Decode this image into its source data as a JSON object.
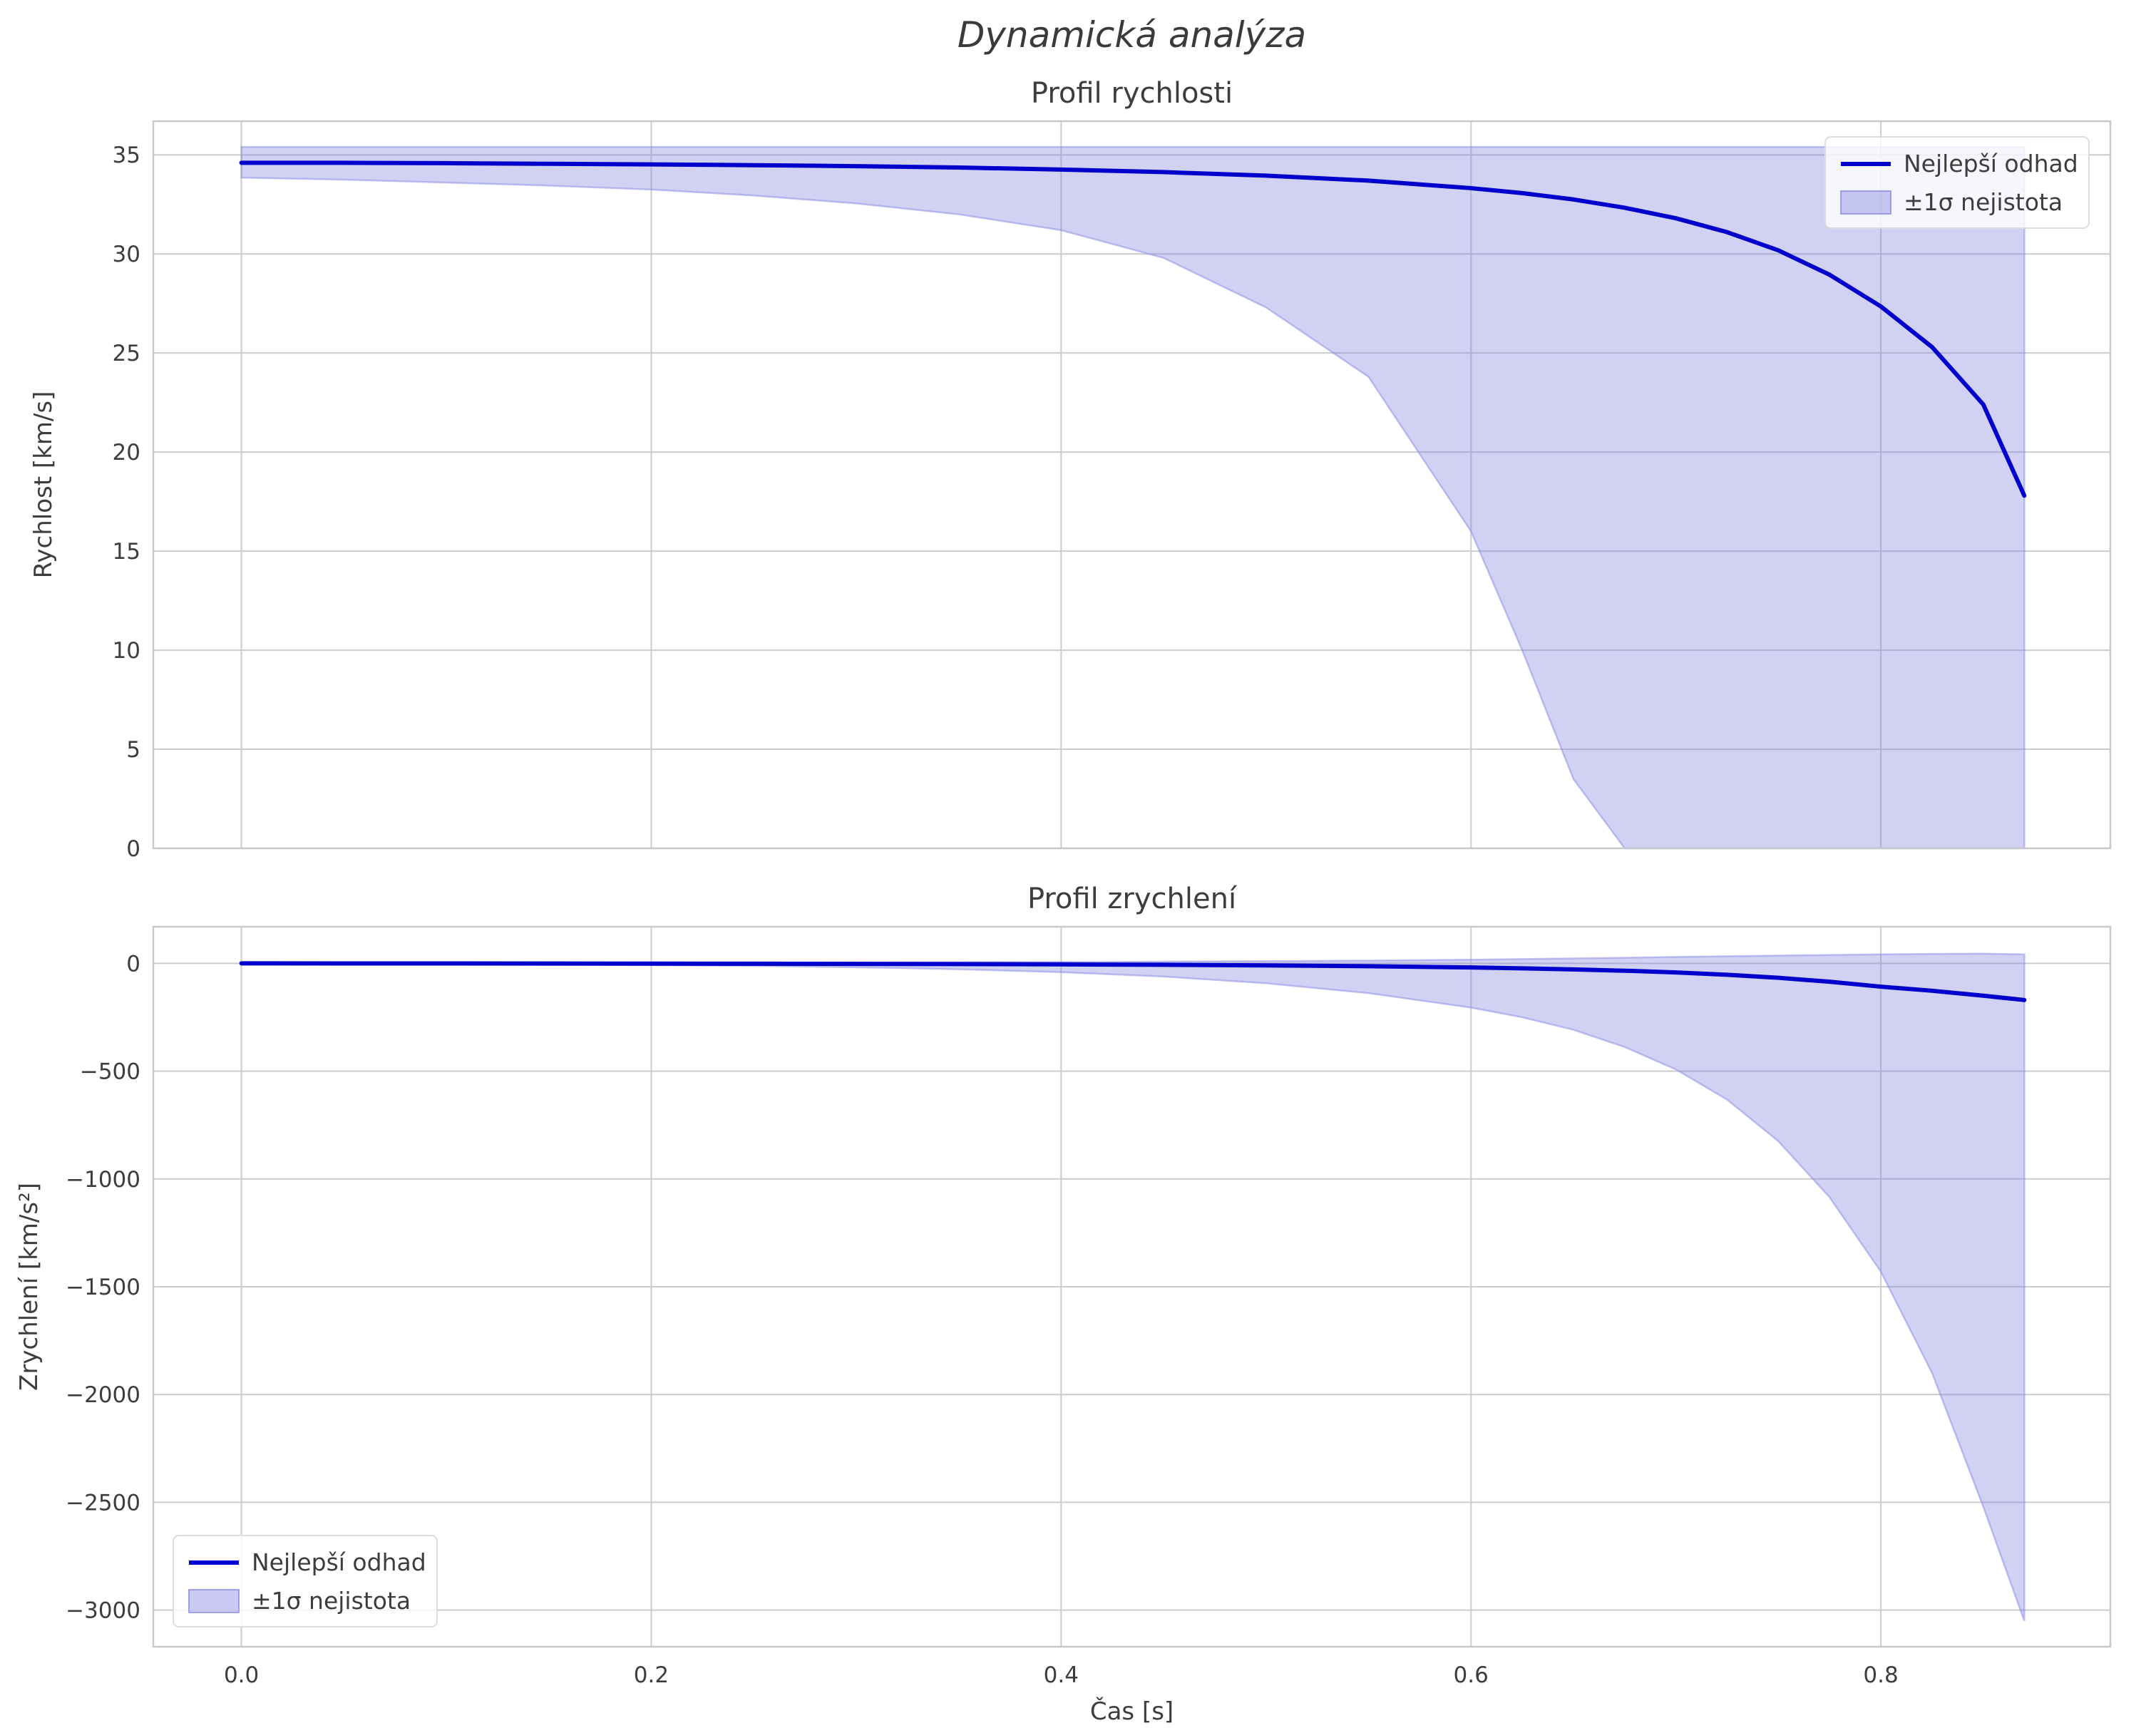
{
  "title": "Dynamická analýza",
  "colors": {
    "line": "#0000cc",
    "band_fill": "#7b7bdf",
    "band_edge": "#8f8fe6",
    "grid": "#cccccc",
    "frame": "#c9c9c9",
    "text": "#3d3d3d"
  },
  "chart_data": [
    {
      "name": "velocity-chart",
      "type": "line",
      "title": "Profil rychlosti",
      "xlabel": "",
      "ylabel": "Rychlost [km/s]",
      "xlim": [
        -0.043,
        0.912
      ],
      "ylim": [
        0,
        36.7
      ],
      "xticks": [
        0,
        0.2,
        0.4,
        0.6,
        0.8
      ],
      "xtick_labels": [
        "0.0",
        "0.2",
        "0.4",
        "0.6",
        "0.8"
      ],
      "show_xticklabels": false,
      "yticks": [
        0,
        5,
        10,
        15,
        20,
        25,
        30,
        35
      ],
      "ytick_labels": [
        "0",
        "5",
        "10",
        "15",
        "20",
        "25",
        "30",
        "35"
      ],
      "grid": true,
      "legend_pos": "top-right",
      "legend": [
        {
          "label": "Nejlepší odhad",
          "type": "line"
        },
        {
          "label": "±1σ nejistota",
          "type": "band"
        }
      ],
      "series": {
        "x": [
          0,
          0.05,
          0.1,
          0.15,
          0.2,
          0.25,
          0.3,
          0.35,
          0.4,
          0.45,
          0.5,
          0.55,
          0.6,
          0.625,
          0.65,
          0.675,
          0.7,
          0.725,
          0.75,
          0.775,
          0.8,
          0.825,
          0.85,
          0.87
        ],
        "best": [
          34.6,
          34.6,
          34.58,
          34.55,
          34.52,
          34.48,
          34.43,
          34.36,
          34.26,
          34.13,
          33.95,
          33.7,
          33.32,
          33.07,
          32.75,
          32.33,
          31.8,
          31.1,
          30.18,
          28.95,
          27.35,
          25.3,
          22.4,
          17.8
        ],
        "upper": [
          35.4,
          35.4,
          35.4,
          35.4,
          35.4,
          35.4,
          35.4,
          35.4,
          35.4,
          35.4,
          35.4,
          35.4,
          35.4,
          35.4,
          35.4,
          35.4,
          35.4,
          35.4,
          35.4,
          35.4,
          35.4,
          35.4,
          35.4,
          35.4
        ],
        "lower": [
          33.85,
          33.75,
          33.6,
          33.45,
          33.25,
          32.95,
          32.55,
          32.0,
          31.2,
          29.8,
          27.3,
          23.8,
          16.0,
          10.0,
          3.5,
          0,
          0,
          0,
          0,
          0,
          0,
          0,
          0,
          0
        ]
      }
    },
    {
      "name": "acceleration-chart",
      "type": "line",
      "title": "Profil zrychlení",
      "xlabel": "Čas [s]",
      "ylabel": "Zrychlení [km/s²]",
      "xlim": [
        -0.043,
        0.912
      ],
      "ylim": [
        -3170,
        170
      ],
      "xticks": [
        0,
        0.2,
        0.4,
        0.6,
        0.8
      ],
      "xtick_labels": [
        "0.0",
        "0.2",
        "0.4",
        "0.6",
        "0.8"
      ],
      "show_xticklabels": true,
      "yticks": [
        0,
        -500,
        -1000,
        -1500,
        -2000,
        -2500,
        -3000
      ],
      "ytick_labels": [
        "0",
        "−500",
        "−1000",
        "−1500",
        "−2000",
        "−2500",
        "−3000"
      ],
      "grid": true,
      "legend_pos": "bottom-left",
      "legend": [
        {
          "label": "Nejlepší odhad",
          "type": "line"
        },
        {
          "label": "±1σ nejistota",
          "type": "band"
        }
      ],
      "series": {
        "x": [
          0,
          0.05,
          0.1,
          0.15,
          0.2,
          0.25,
          0.3,
          0.35,
          0.4,
          0.45,
          0.5,
          0.55,
          0.6,
          0.625,
          0.65,
          0.675,
          0.7,
          0.725,
          0.75,
          0.775,
          0.8,
          0.825,
          0.85,
          0.87
        ],
        "best": [
          0,
          -0.2,
          -0.4,
          -0.7,
          -1.0,
          -1.5,
          -2.2,
          -3.2,
          -4.6,
          -6.5,
          -9.2,
          -13,
          -19,
          -23,
          -28,
          -34,
          -42,
          -53,
          -67,
          -85,
          -108,
          -127,
          -150,
          -170
        ],
        "upper": [
          1,
          1,
          1,
          2,
          2,
          3,
          4,
          5,
          6,
          8,
          10,
          13,
          17,
          20,
          23,
          26,
          30,
          33,
          36,
          39,
          42,
          44,
          45,
          42
        ],
        "lower": [
          -1,
          -2,
          -3,
          -5,
          -8,
          -12,
          -18,
          -27,
          -41,
          -61,
          -92,
          -138,
          -205,
          -250,
          -308,
          -388,
          -492,
          -632,
          -825,
          -1085,
          -1430,
          -1900,
          -2520,
          -3050
        ]
      }
    }
  ]
}
